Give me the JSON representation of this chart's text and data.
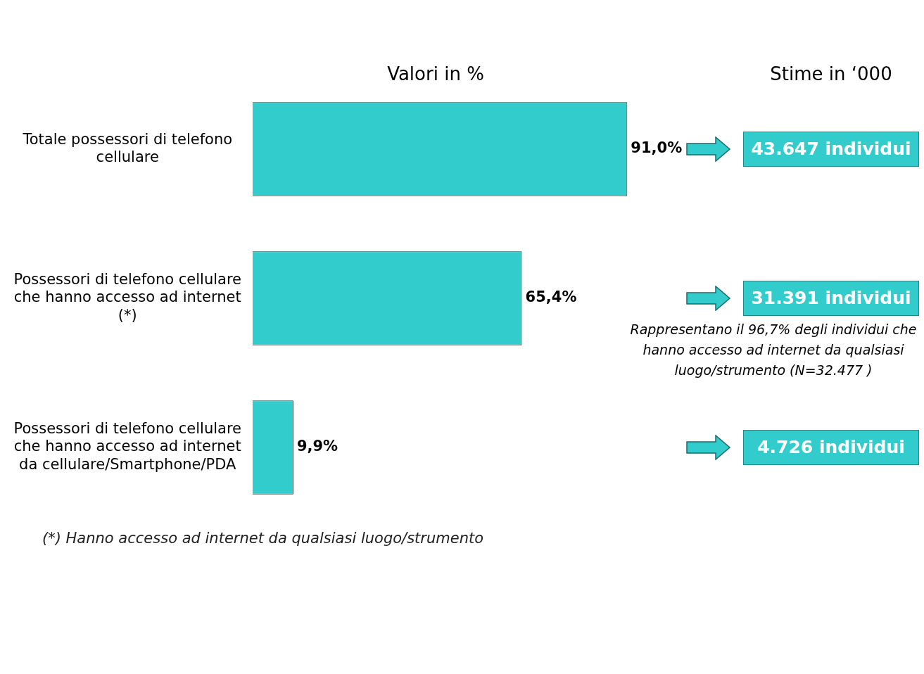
{
  "chart_data": {
    "type": "bar",
    "orientation": "horizontal",
    "title": "Valori in %",
    "categories": [
      "Totale possessori di telefono cellulare",
      "Possessori di telefono cellulare che hanno accesso ad internet (*)",
      "Possessori di telefono cellulare che hanno accesso ad internet da cellulare/Smartphone/PDA"
    ],
    "values": [
      91.0,
      65.4,
      9.9
    ],
    "color": "#33cccc",
    "value_labels": [
      "91,0%",
      "65,4%",
      "9,9%"
    ],
    "tick_labels": "y",
    "annotations": [
      "Stime in ‘000",
      "43.647 individui",
      "31.391 individui",
      "Rappresentano il 96,7% degli individui che hanno accesso ad internet da qualsiasi luogo/strumento (N=32.477 )",
      "4.726 individui",
      "(*) Hanno accesso ad internet da qualsiasi luogo/strumento"
    ]
  }
}
